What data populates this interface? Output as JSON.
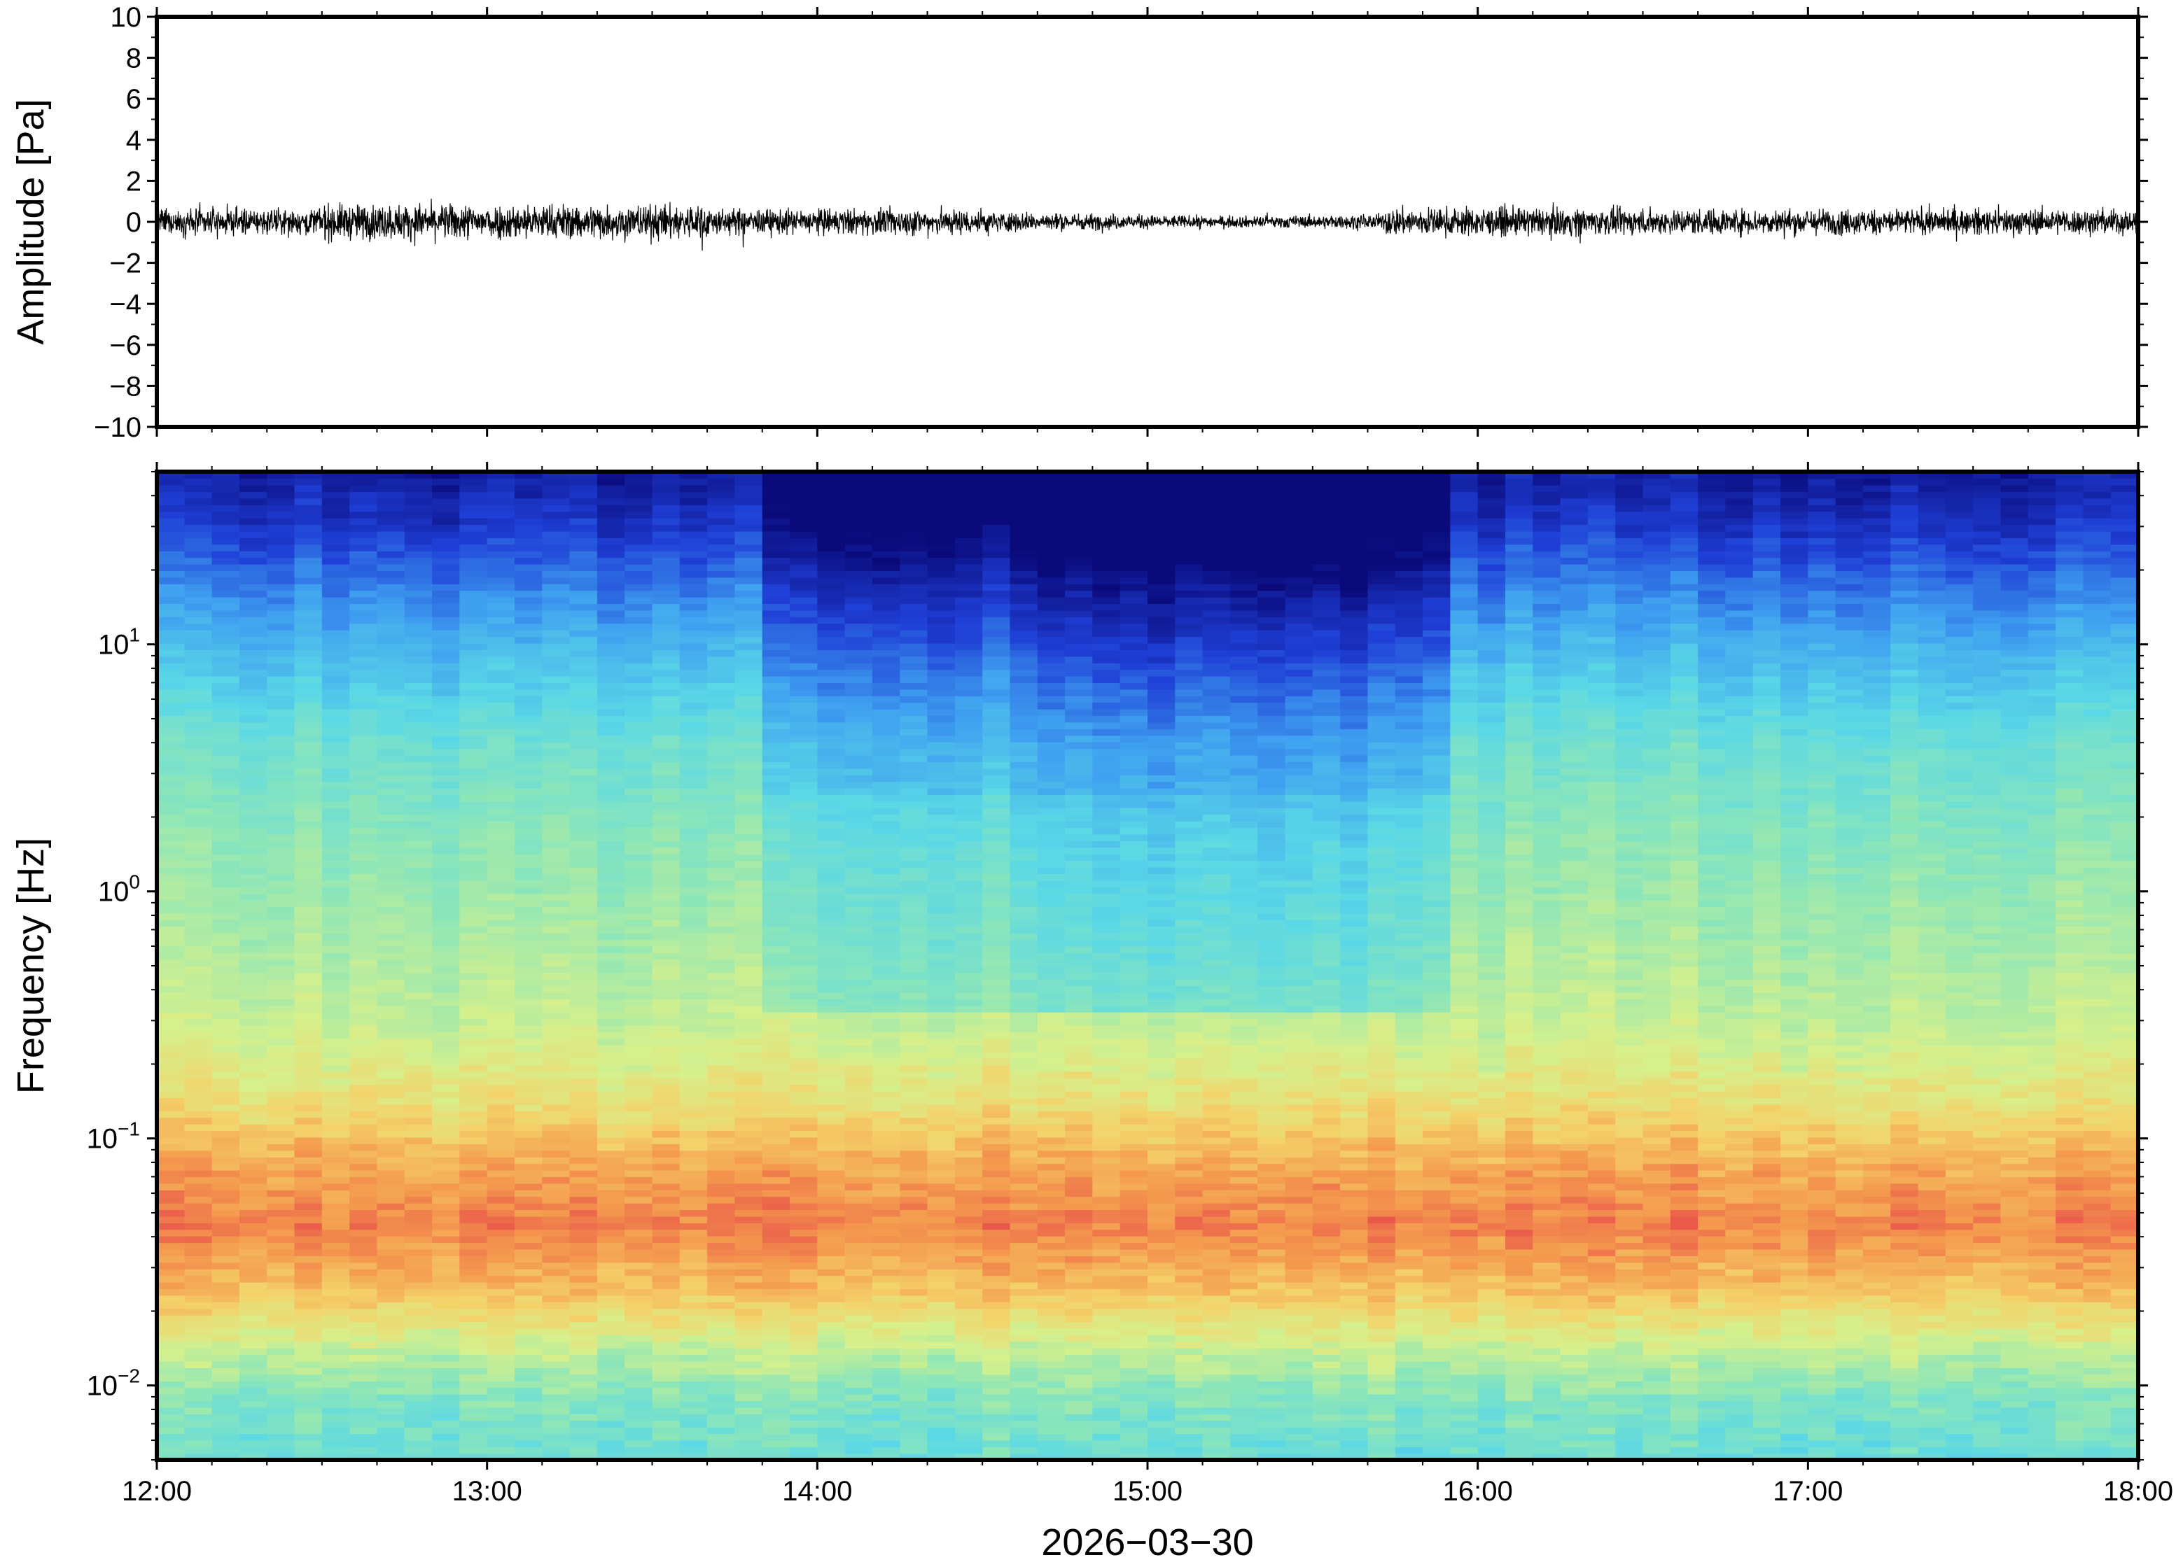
{
  "chart_data": [
    {
      "type": "line",
      "panel": "waveform",
      "ylabel": "Amplitude [Pa]",
      "ylim": [
        -10,
        10
      ],
      "yticks": [
        10,
        8,
        6,
        4,
        2,
        0,
        -2,
        -4,
        -6,
        -8,
        -10
      ],
      "ytick_labels": [
        "10",
        "8",
        "6",
        "4",
        "2",
        "0",
        "−2",
        "−4",
        "−6",
        "−8",
        "−10"
      ],
      "xlim": [
        "12:00",
        "18:00"
      ],
      "line_color": "#000000",
      "typical_peak_amplitude": 0.8,
      "max_peak_amplitude": 1.4,
      "grid": false
    },
    {
      "type": "heatmap",
      "panel": "spectrogram",
      "ylabel": "Frequency [Hz]",
      "yscale": "log",
      "ylim": [
        0.005,
        50
      ],
      "yticks": [
        10,
        1,
        0.1,
        0.01
      ],
      "ytick_labels": [
        {
          "base": "10",
          "exp": "1"
        },
        {
          "base": "10",
          "exp": "0"
        },
        {
          "base": "10",
          "exp": "−1"
        },
        {
          "base": "10",
          "exp": "−2"
        }
      ],
      "xticks": [
        "12:00",
        "13:00",
        "14:00",
        "15:00",
        "16:00",
        "17:00",
        "18:00"
      ],
      "xlabel": "2026−03−30",
      "colormap": [
        "#0a0a7a",
        "#1f3fd6",
        "#3fa0f0",
        "#5ad8e6",
        "#8de6b8",
        "#d6f08c",
        "#f4d26a",
        "#f49a4e",
        "#e8504a"
      ],
      "grid": false
    }
  ]
}
